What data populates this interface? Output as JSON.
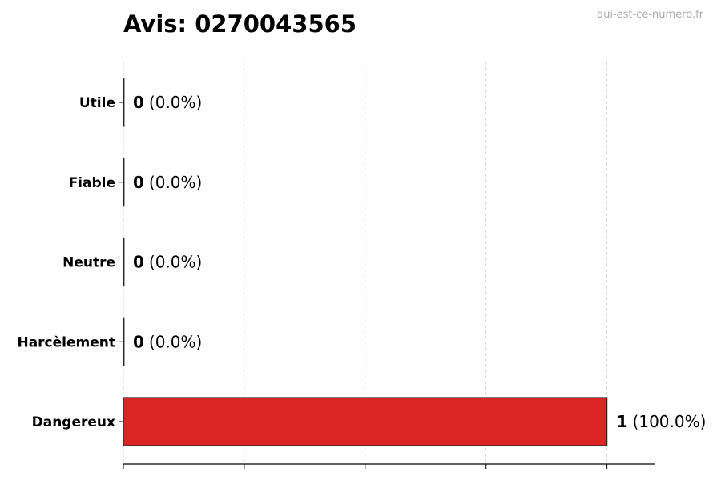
{
  "watermark": "qui-est-ce-numero.fr",
  "chart_data": {
    "type": "bar",
    "orientation": "horizontal",
    "title": "Avis: 0270043565",
    "categories": [
      "Utile",
      "Fiable",
      "Neutre",
      "Harcèlement",
      "Dangereux"
    ],
    "values": [
      0,
      0,
      0,
      0,
      1
    ],
    "data_labels": [
      {
        "count": "0",
        "pct": "(0.0%)"
      },
      {
        "count": "0",
        "pct": "(0.0%)"
      },
      {
        "count": "0",
        "pct": "(0.0%)"
      },
      {
        "count": "0",
        "pct": "(0.0%)"
      },
      {
        "count": "1",
        "pct": "(100.0%)"
      }
    ],
    "colors": [
      "#dc2626",
      "#dc2626",
      "#dc2626",
      "#dc2626",
      "#dc2626"
    ],
    "xlim": [
      0,
      1.1
    ],
    "xticks": [
      0,
      0.25,
      0.5,
      0.75,
      1
    ],
    "xtick_labels_shown": false,
    "grid": "x-dashed",
    "xlabel": "",
    "ylabel": ""
  }
}
